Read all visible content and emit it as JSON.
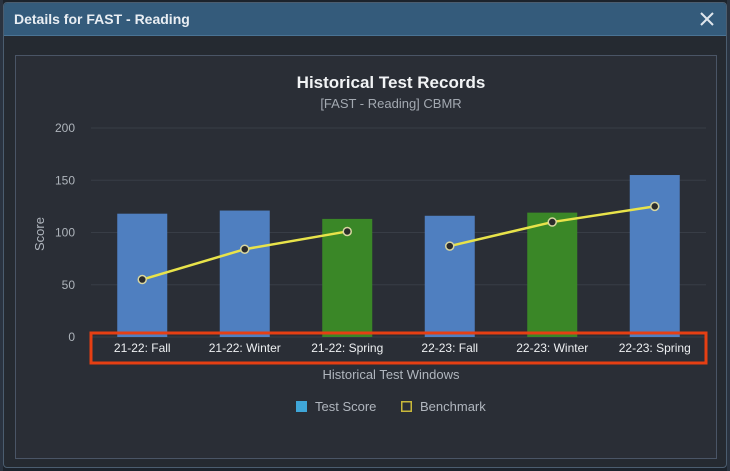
{
  "dialog": {
    "title": "Details for FAST - Reading",
    "close_icon": "close-icon"
  },
  "chart_data": {
    "type": "bar",
    "title": "Historical Test Records",
    "subtitle": "[FAST - Reading] CBMR",
    "xlabel": "Historical Test Windows",
    "ylabel": "Score",
    "ylim": [
      0,
      200
    ],
    "yticks": [
      "0",
      "50",
      "100",
      "150",
      "200"
    ],
    "grid": true,
    "legend_position": "bottom",
    "categories": [
      "21-22: Fall",
      "21-22: Winter",
      "21-22: Spring",
      "22-23: Fall",
      "22-23: Winter",
      "22-23: Spring"
    ],
    "series": [
      {
        "name": "Test Score",
        "kind": "bar",
        "values": [
          118,
          121,
          113,
          116,
          119,
          155
        ],
        "colors": [
          "#4f7fc0",
          "#4f7fc0",
          "#3a8727",
          "#4f7fc0",
          "#3a8727",
          "#4f7fc0"
        ]
      },
      {
        "name": "Benchmark",
        "kind": "line",
        "color": "#e8e34a",
        "segments": [
          {
            "categories": [
              0,
              1,
              2
            ],
            "values": [
              55,
              84,
              101
            ]
          },
          {
            "categories": [
              3,
              4,
              5
            ],
            "values": [
              87,
              110,
              125
            ]
          }
        ]
      }
    ],
    "legend": [
      {
        "label": "Test Score",
        "color": "#3fa6d8",
        "style": "filled"
      },
      {
        "label": "Benchmark",
        "color": "#c9b83a",
        "style": "outline"
      }
    ],
    "highlight_color": "#e63f13"
  }
}
